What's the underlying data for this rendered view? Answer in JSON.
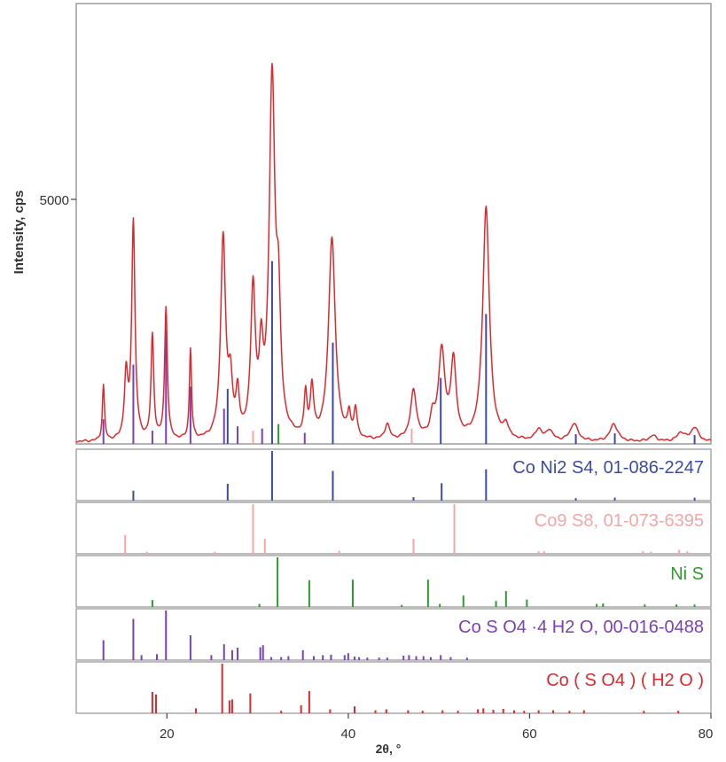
{
  "chart_data": {
    "type": "line",
    "xlabel": "2θ, °",
    "ylabel": "Intensity, cps",
    "xlim": [
      10,
      80
    ],
    "ylim": [
      0,
      10000
    ],
    "x_ticks": [
      20,
      40,
      60,
      80
    ],
    "y_ticks": [
      5000
    ],
    "main_pattern": {
      "color": "#e0282c",
      "baseline": 40,
      "peaks": [
        {
          "x": 13.0,
          "h": 1250,
          "w": 0.14
        },
        {
          "x": 15.5,
          "h": 1450,
          "w": 0.22
        },
        {
          "x": 16.3,
          "h": 4950,
          "w": 0.22
        },
        {
          "x": 18.4,
          "h": 2350,
          "w": 0.18
        },
        {
          "x": 19.9,
          "h": 3000,
          "w": 0.18
        },
        {
          "x": 22.6,
          "h": 2050,
          "w": 0.14
        },
        {
          "x": 26.2,
          "h": 4550,
          "w": 0.32
        },
        {
          "x": 27.0,
          "h": 1150,
          "w": 0.28
        },
        {
          "x": 27.8,
          "h": 900,
          "w": 0.22
        },
        {
          "x": 29.5,
          "h": 3300,
          "w": 0.3
        },
        {
          "x": 30.4,
          "h": 1600,
          "w": 0.26
        },
        {
          "x": 31.6,
          "h": 8050,
          "w": 0.38
        },
        {
          "x": 32.3,
          "h": 2500,
          "w": 0.28
        },
        {
          "x": 35.3,
          "h": 950,
          "w": 0.18
        },
        {
          "x": 36.0,
          "h": 1100,
          "w": 0.22
        },
        {
          "x": 38.2,
          "h": 4600,
          "w": 0.44
        },
        {
          "x": 40.1,
          "h": 500,
          "w": 0.2
        },
        {
          "x": 40.8,
          "h": 650,
          "w": 0.2
        },
        {
          "x": 44.3,
          "h": 350,
          "w": 0.3
        },
        {
          "x": 47.2,
          "h": 1100,
          "w": 0.4
        },
        {
          "x": 49.3,
          "h": 450,
          "w": 0.3
        },
        {
          "x": 50.3,
          "h": 2000,
          "w": 0.42
        },
        {
          "x": 51.6,
          "h": 1750,
          "w": 0.35
        },
        {
          "x": 55.2,
          "h": 5300,
          "w": 0.44
        },
        {
          "x": 57.4,
          "h": 300,
          "w": 0.3
        },
        {
          "x": 61.0,
          "h": 260,
          "w": 0.4
        },
        {
          "x": 62.2,
          "h": 240,
          "w": 0.4
        },
        {
          "x": 64.9,
          "h": 400,
          "w": 0.5
        },
        {
          "x": 69.3,
          "h": 400,
          "w": 0.5
        },
        {
          "x": 73.6,
          "h": 130,
          "w": 0.5
        },
        {
          "x": 76.7,
          "h": 200,
          "w": 0.5
        },
        {
          "x": 78.2,
          "h": 320,
          "w": 0.5
        }
      ]
    },
    "main_overlay_sticks": [
      {
        "x": 13.0,
        "y": 560,
        "color": "#7b3fb6"
      },
      {
        "x": 16.3,
        "y": 1800,
        "color": "#7b3fb6"
      },
      {
        "x": 18.4,
        "y": 300,
        "color": "#7b3fb6"
      },
      {
        "x": 19.9,
        "y": 2600,
        "color": "#7b3fb6"
      },
      {
        "x": 22.6,
        "y": 1300,
        "color": "#7b3fb6"
      },
      {
        "x": 26.3,
        "y": 800,
        "color": "#7b3fb6"
      },
      {
        "x": 26.7,
        "y": 1250,
        "color": "#3b4aa8"
      },
      {
        "x": 27.8,
        "y": 400,
        "color": "#7b3fb6"
      },
      {
        "x": 29.5,
        "y": 300,
        "color": "#f4a6a6"
      },
      {
        "x": 30.5,
        "y": 350,
        "color": "#7b3fb6"
      },
      {
        "x": 31.6,
        "y": 4150,
        "color": "#3b4aa8"
      },
      {
        "x": 32.3,
        "y": 450,
        "color": "#2e9b2e"
      },
      {
        "x": 35.2,
        "y": 250,
        "color": "#7b3fb6"
      },
      {
        "x": 38.3,
        "y": 2300,
        "color": "#3b4aa8"
      },
      {
        "x": 47.0,
        "y": 350,
        "color": "#f4a6a6"
      },
      {
        "x": 50.2,
        "y": 1500,
        "color": "#3b4aa8"
      },
      {
        "x": 55.2,
        "y": 2950,
        "color": "#3b4aa8"
      },
      {
        "x": 65.1,
        "y": 220,
        "color": "#3b4aa8"
      },
      {
        "x": 69.4,
        "y": 240,
        "color": "#3b4aa8"
      },
      {
        "x": 78.2,
        "y": 200,
        "color": "#3b4aa8"
      }
    ],
    "reference_panels": [
      {
        "label": "Co Ni2 S4, 01-086-2247",
        "color": "#3b4aa8",
        "sticks": [
          [
            16.3,
            0.2
          ],
          [
            26.7,
            0.34
          ],
          [
            31.6,
            1.0
          ],
          [
            38.3,
            0.6
          ],
          [
            47.2,
            0.07
          ],
          [
            50.3,
            0.35
          ],
          [
            55.2,
            0.63
          ],
          [
            65.1,
            0.05
          ],
          [
            69.4,
            0.06
          ],
          [
            78.2,
            0.06
          ]
        ]
      },
      {
        "label": "Co9 S8, 01-073-6395",
        "color": "#f4a6a6",
        "sticks": [
          [
            15.4,
            0.38
          ],
          [
            17.8,
            0.04
          ],
          [
            25.3,
            0.04
          ],
          [
            29.5,
            1.0
          ],
          [
            30.8,
            0.3
          ],
          [
            39.0,
            0.06
          ],
          [
            47.2,
            0.3
          ],
          [
            51.7,
            1.0
          ],
          [
            61.0,
            0.05
          ],
          [
            61.6,
            0.05
          ],
          [
            72.5,
            0.05
          ],
          [
            73.4,
            0.04
          ],
          [
            76.5,
            0.08
          ],
          [
            77.4,
            0.05
          ]
        ]
      },
      {
        "label": "Ni S",
        "color": "#2e9b2e",
        "sticks": [
          [
            18.4,
            0.14
          ],
          [
            30.2,
            0.06
          ],
          [
            32.2,
            1.0
          ],
          [
            35.7,
            0.54
          ],
          [
            40.5,
            0.55
          ],
          [
            45.9,
            0.04
          ],
          [
            48.8,
            0.55
          ],
          [
            50.1,
            0.06
          ],
          [
            52.7,
            0.23
          ],
          [
            56.3,
            0.12
          ],
          [
            57.4,
            0.32
          ],
          [
            59.7,
            0.15
          ],
          [
            67.4,
            0.06
          ],
          [
            68.1,
            0.07
          ],
          [
            72.7,
            0.05
          ],
          [
            76.2,
            0.05
          ],
          [
            78.2,
            0.05
          ]
        ]
      },
      {
        "label": "Co S O4 ·4 H2 O, 00-016-0488",
        "color": "#7b3fb6",
        "sticks": [
          [
            13.0,
            0.4
          ],
          [
            16.3,
            0.83
          ],
          [
            17.2,
            0.1
          ],
          [
            18.9,
            0.12
          ],
          [
            19.9,
            1.0
          ],
          [
            22.6,
            0.5
          ],
          [
            24.9,
            0.1
          ],
          [
            26.3,
            0.32
          ],
          [
            27.2,
            0.2
          ],
          [
            27.8,
            0.25
          ],
          [
            30.3,
            0.26
          ],
          [
            30.6,
            0.3
          ],
          [
            31.5,
            0.06
          ],
          [
            32.6,
            0.06
          ],
          [
            33.4,
            0.08
          ],
          [
            35.0,
            0.2
          ],
          [
            36.2,
            0.08
          ],
          [
            37.2,
            0.1
          ],
          [
            38.1,
            0.11
          ],
          [
            39.6,
            0.1
          ],
          [
            40.0,
            0.14
          ],
          [
            40.7,
            0.07
          ],
          [
            41.2,
            0.06
          ],
          [
            42.1,
            0.05
          ],
          [
            43.4,
            0.05
          ],
          [
            44.3,
            0.05
          ],
          [
            46.1,
            0.09
          ],
          [
            46.7,
            0.1
          ],
          [
            47.5,
            0.08
          ],
          [
            48.3,
            0.08
          ],
          [
            49.1,
            0.06
          ],
          [
            50.2,
            0.1
          ],
          [
            51.3,
            0.06
          ],
          [
            53.1,
            0.05
          ]
        ]
      },
      {
        "label": "Co ( S O4 ) ( H2 O )",
        "color": "#e0282c",
        "sticks": [
          [
            18.4,
            0.43
          ],
          [
            18.8,
            0.38
          ],
          [
            23.2,
            0.1
          ],
          [
            26.1,
            1.0
          ],
          [
            26.9,
            0.26
          ],
          [
            27.2,
            0.28
          ],
          [
            29.2,
            0.4
          ],
          [
            32.6,
            0.05
          ],
          [
            34.8,
            0.16
          ],
          [
            35.7,
            0.45
          ],
          [
            38.0,
            0.08
          ],
          [
            40.7,
            0.14
          ],
          [
            43.0,
            0.06
          ],
          [
            44.2,
            0.08
          ],
          [
            46.6,
            0.06
          ],
          [
            48.2,
            0.05
          ],
          [
            50.4,
            0.06
          ],
          [
            52.1,
            0.05
          ],
          [
            54.3,
            0.08
          ],
          [
            54.9,
            0.1
          ],
          [
            56.0,
            0.07
          ],
          [
            57.1,
            0.09
          ],
          [
            58.3,
            0.06
          ],
          [
            59.4,
            0.05
          ],
          [
            61.0,
            0.06
          ],
          [
            62.6,
            0.06
          ],
          [
            64.4,
            0.05
          ],
          [
            66.0,
            0.06
          ],
          [
            72.6,
            0.05
          ],
          [
            76.4,
            0.05
          ]
        ]
      }
    ]
  }
}
